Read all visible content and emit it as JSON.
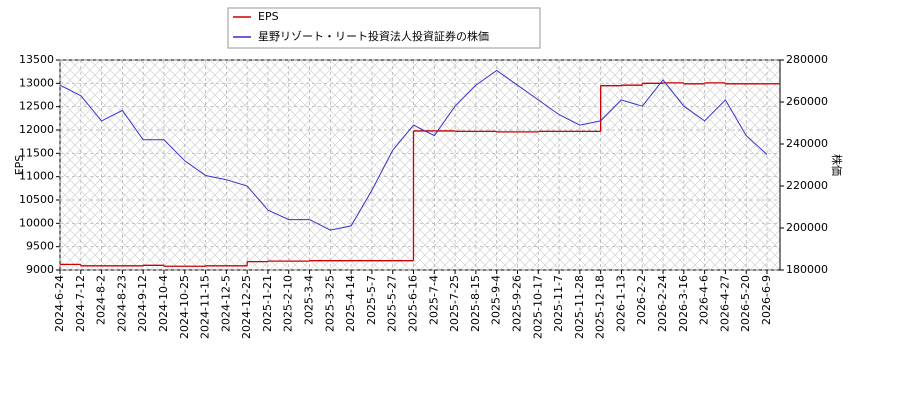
{
  "chart_data": {
    "type": "line",
    "y_label": "EPS",
    "y2_label": "株価",
    "x": [
      "2024-6-24",
      "2024-7-12",
      "2024-8-2",
      "2024-8-23",
      "2024-9-12",
      "2024-10-4",
      "2024-10-25",
      "2024-11-15",
      "2024-12-5",
      "2024-12-25",
      "2025-1-21",
      "2025-2-10",
      "2025-3-4",
      "2025-3-25",
      "2025-4-14",
      "2025-5-7",
      "2025-5-27",
      "2025-6-16",
      "2025-7-4",
      "2025-7-25",
      "2025-8-15",
      "2025-9-4",
      "2025-9-26",
      "2025-10-17",
      "2025-11-7",
      "2025-11-28",
      "2025-12-18",
      "2026-1-13",
      "2026-2-2",
      "2026-2-24",
      "2026-3-16",
      "2026-4-6",
      "2026-4-27",
      "2026-5-20",
      "2026-6-9"
    ],
    "series": [
      {
        "name": "EPS",
        "color": "#cc0000",
        "drawstyle": "steps-post",
        "values": [
          9120,
          9090,
          9090,
          9090,
          9100,
          9080,
          9080,
          9090,
          9090,
          9180,
          9190,
          9190,
          9200,
          9200,
          9200,
          9200,
          9200,
          11980,
          11980,
          11970,
          11970,
          11960,
          11960,
          11970,
          11970,
          11970,
          12950,
          12960,
          13000,
          13010,
          12990,
          13010,
          12990,
          12990,
          12990
        ]
      },
      {
        "name": "星野リゾート・リート投資法人投資証券の株価",
        "color": "#3333cc",
        "axis": "y2",
        "values": [
          268000,
          263000,
          251000,
          256000,
          242000,
          242000,
          232000,
          225000,
          223000,
          220000,
          208500,
          204000,
          204000,
          199000,
          201000,
          218000,
          237000,
          249000,
          244000,
          258000,
          268000,
          275000,
          268000,
          261000,
          254000,
          249000,
          251000,
          261000,
          258000,
          270500,
          258000,
          251000,
          261000,
          244000,
          235000
        ]
      }
    ],
    "ylim": [
      9000,
      13500
    ],
    "yticks": [
      9000,
      9500,
      10000,
      10500,
      11000,
      11500,
      12000,
      12500,
      13000,
      13500
    ],
    "y2lim": [
      180000,
      280000
    ],
    "y2ticks": [
      180000,
      200000,
      220000,
      240000,
      260000,
      280000
    ],
    "grid": true
  }
}
